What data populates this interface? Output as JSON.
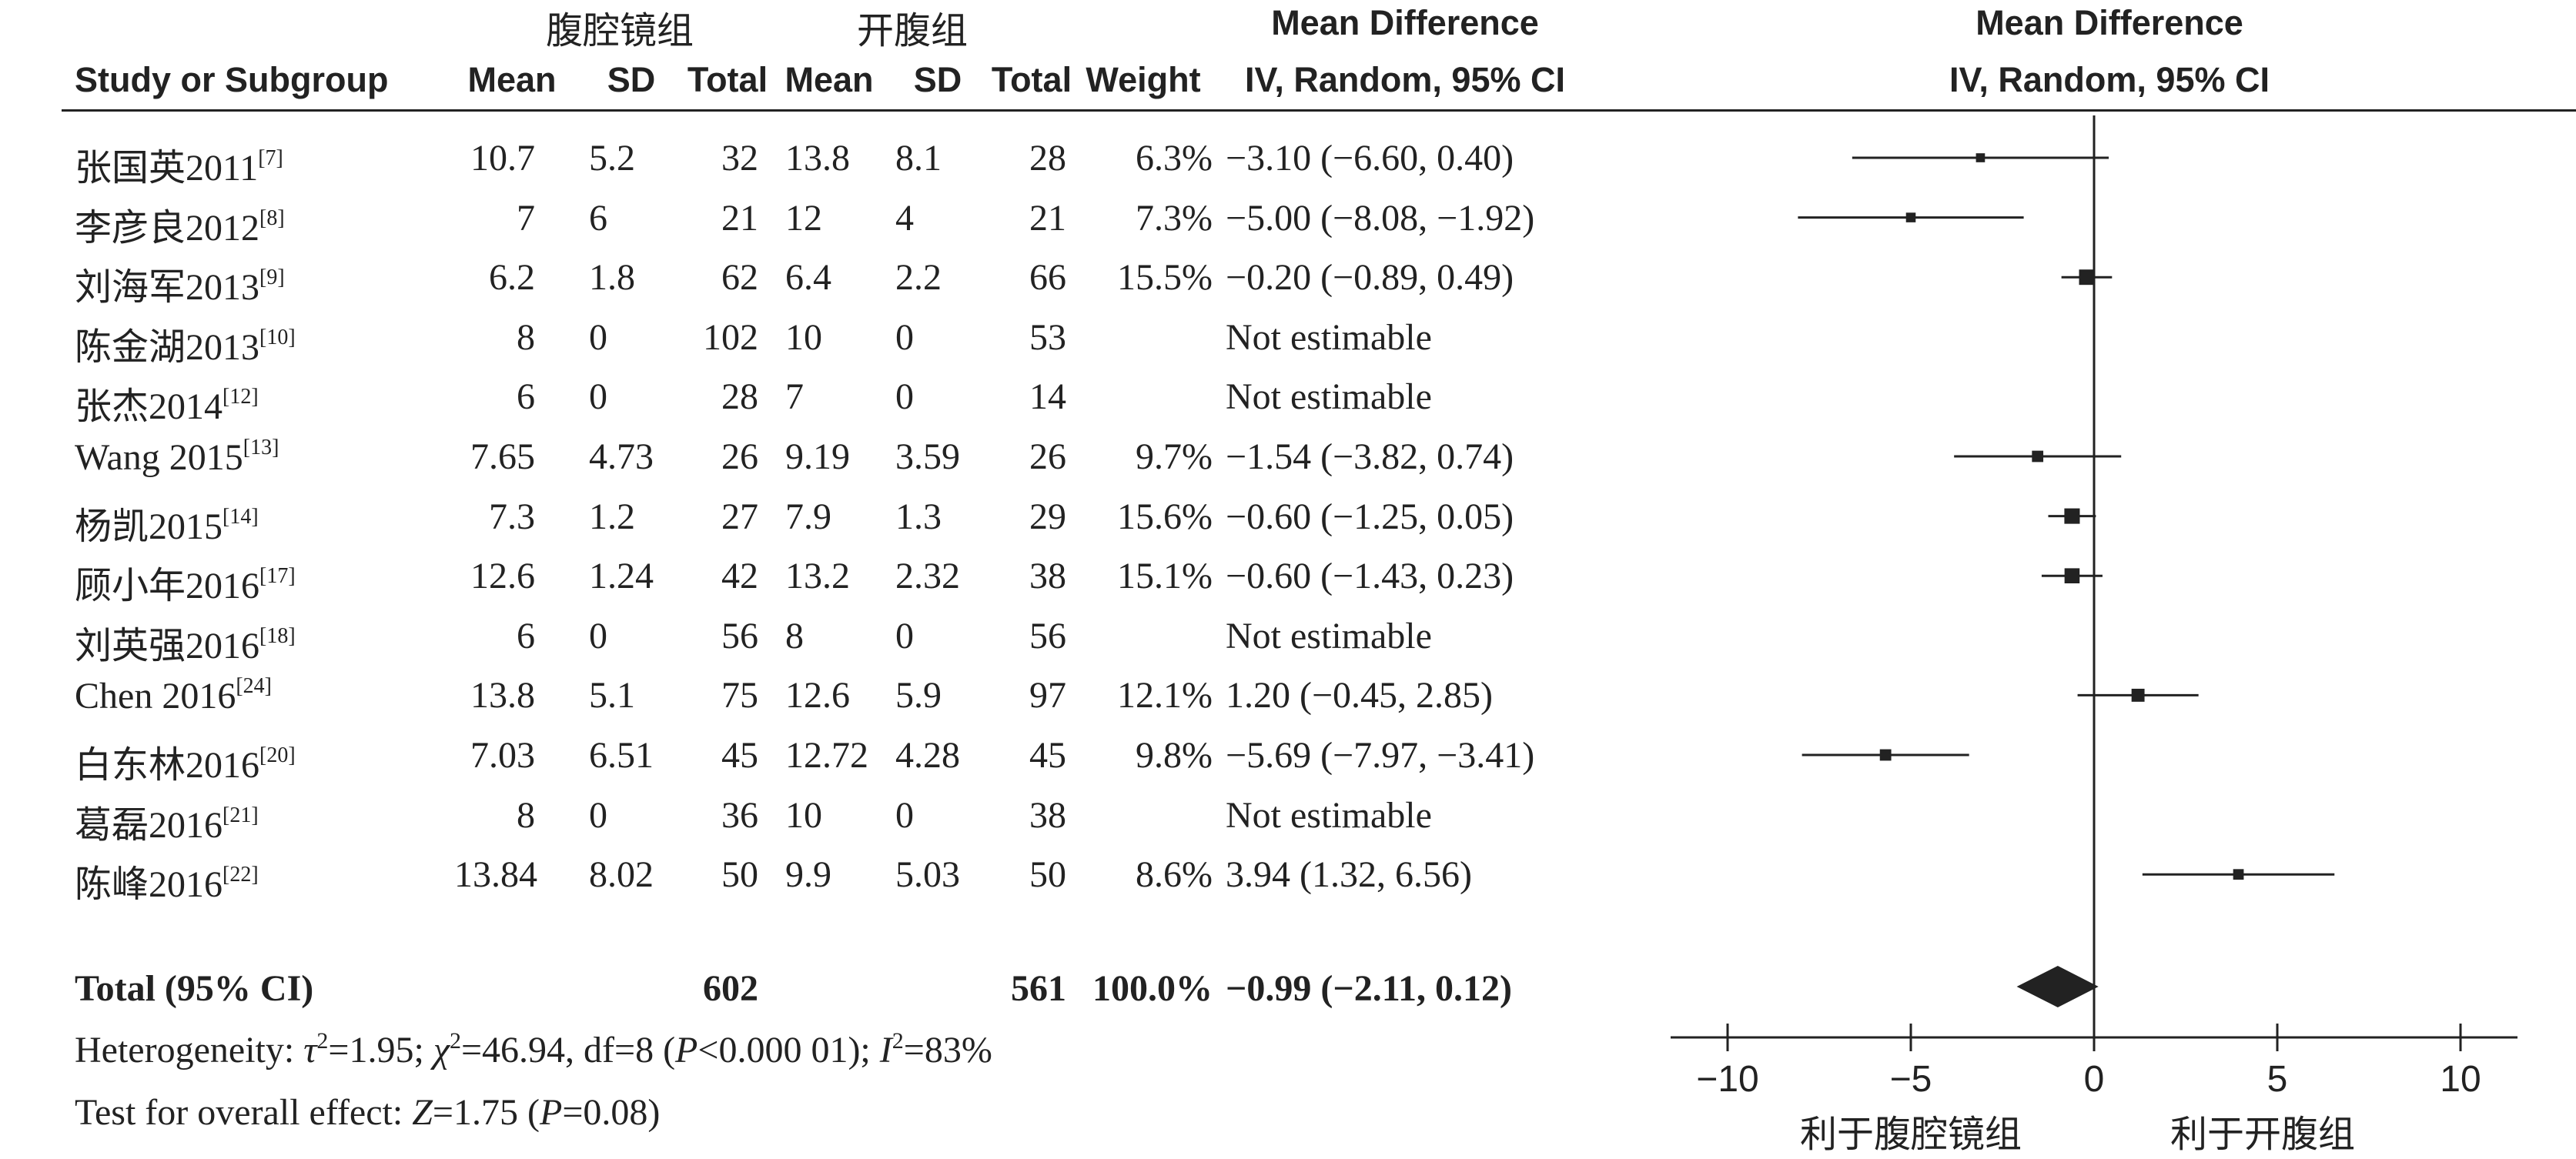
{
  "group_headers": {
    "experimental": "腹腔镜组",
    "control": "开腹组"
  },
  "column_headers": {
    "study": "Study or Subgroup",
    "mean1": "Mean",
    "sd1": "SD",
    "total1": "Total",
    "mean2": "Mean",
    "sd2": "SD",
    "total2": "Total",
    "weight": "Weight",
    "effect_title": "Mean Difference",
    "effect_sub": "IV, Random, 95% CI"
  },
  "plot_header": {
    "title": "Mean Difference",
    "sub": "IV, Random, 95% CI"
  },
  "rows": [
    {
      "study": "张国英2011",
      "ref": "[7]",
      "mean1": "10.7",
      "sd1": "5.2",
      "total1": "32",
      "mean2": "13.8",
      "sd2": "8.1",
      "total2": "28",
      "weight": "6.3%",
      "ci_text": "−3.10 (−6.60, 0.40)"
    },
    {
      "study": "李彦良2012",
      "ref": "[8]",
      "mean1": "7",
      "sd1": "6",
      "total1": "21",
      "mean2": "12",
      "sd2": "4",
      "total2": "21",
      "weight": "7.3%",
      "ci_text": "−5.00 (−8.08, −1.92)"
    },
    {
      "study": "刘海军2013",
      "ref": "[9]",
      "mean1": "6.2",
      "sd1": "1.8",
      "total1": "62",
      "mean2": "6.4",
      "sd2": "2.2",
      "total2": "66",
      "weight": "15.5%",
      "ci_text": "−0.20 (−0.89, 0.49)"
    },
    {
      "study": "陈金湖2013",
      "ref": "[10]",
      "mean1": "8",
      "sd1": "0",
      "total1": "102",
      "mean2": "10",
      "sd2": "0",
      "total2": "53",
      "weight": "",
      "ci_text": "Not estimable"
    },
    {
      "study": "张杰2014",
      "ref": "[12]",
      "mean1": "6",
      "sd1": "0",
      "total1": "28",
      "mean2": "7",
      "sd2": "0",
      "total2": "14",
      "weight": "",
      "ci_text": "Not estimable"
    },
    {
      "study": "Wang 2015",
      "ref": "[13]",
      "mean1": "7.65",
      "sd1": "4.73",
      "total1": "26",
      "mean2": "9.19",
      "sd2": "3.59",
      "total2": "26",
      "weight": "9.7%",
      "ci_text": "−1.54 (−3.82, 0.74)"
    },
    {
      "study": "杨凯2015",
      "ref": "[14]",
      "mean1": "7.3",
      "sd1": "1.2",
      "total1": "27",
      "mean2": "7.9",
      "sd2": "1.3",
      "total2": "29",
      "weight": "15.6%",
      "ci_text": "−0.60 (−1.25, 0.05)"
    },
    {
      "study": "顾小年2016",
      "ref": "[17]",
      "mean1": "12.6",
      "sd1": "1.24",
      "total1": "42",
      "mean2": "13.2",
      "sd2": "2.32",
      "total2": "38",
      "weight": "15.1%",
      "ci_text": "−0.60 (−1.43, 0.23)"
    },
    {
      "study": "刘英强2016",
      "ref": "[18]",
      "mean1": "6",
      "sd1": "0",
      "total1": "56",
      "mean2": "8",
      "sd2": "0",
      "total2": "56",
      "weight": "",
      "ci_text": "Not estimable"
    },
    {
      "study": "Chen 2016",
      "ref": "[24]",
      "mean1": "13.8",
      "sd1": "5.1",
      "total1": "75",
      "mean2": "12.6",
      "sd2": "5.9",
      "total2": "97",
      "weight": "12.1%",
      "ci_text": "1.20 (−0.45, 2.85)"
    },
    {
      "study": "白东林2016",
      "ref": "[20]",
      "mean1": "7.03",
      "sd1": "6.51",
      "total1": "45",
      "mean2": "12.72",
      "sd2": "4.28",
      "total2": "45",
      "weight": "9.8%",
      "ci_text": "−5.69 (−7.97, −3.41)"
    },
    {
      "study": "葛磊2016",
      "ref": "[21]",
      "mean1": "8",
      "sd1": "0",
      "total1": "36",
      "mean2": "10",
      "sd2": "0",
      "total2": "38",
      "weight": "",
      "ci_text": "Not estimable"
    },
    {
      "study": "陈峰2016",
      "ref": "[22]",
      "mean1": "13.84",
      "sd1": "8.02",
      "total1": "50",
      "mean2": "9.9",
      "sd2": "5.03",
      "total2": "50",
      "weight": "8.6%",
      "ci_text": "3.94 (1.32, 6.56)"
    }
  ],
  "total": {
    "label": "Total (95% CI)",
    "total1": "602",
    "total2": "561",
    "weight": "100.0%",
    "ci_text": "−0.99 (−2.11, 0.12)"
  },
  "heterogeneity": {
    "prefix": "Heterogeneity: ",
    "tau": "τ",
    "tau_eq": "=1.95; ",
    "chi": "χ",
    "chi_eq": "=46.94, df=8 (",
    "p": "P",
    "p_eq": "<0.000 01); ",
    "i": "I",
    "i_eq": "=83%",
    "sq": "2"
  },
  "overall": {
    "prefix": "Test for overall effect: ",
    "z": "Z",
    "z_eq": "=1.75 (",
    "p": "P",
    "p_eq": "=0.08)"
  },
  "chart_data": {
    "type": "forest",
    "xlim": [
      -10,
      10
    ],
    "ticks": [
      -10,
      -5,
      0,
      5,
      10
    ],
    "tick_labels": [
      "−10",
      "−5",
      "0",
      "5",
      "10"
    ],
    "favours_left": "利于腹腔镜组",
    "favours_right": "利于开腹组",
    "studies": [
      {
        "study": "张国英2011",
        "md": -3.1,
        "lower": -6.6,
        "upper": 0.4,
        "weight": 6.3
      },
      {
        "study": "李彦良2012",
        "md": -5.0,
        "lower": -8.08,
        "upper": -1.92,
        "weight": 7.3
      },
      {
        "study": "刘海军2013",
        "md": -0.2,
        "lower": -0.89,
        "upper": 0.49,
        "weight": 15.5
      },
      {
        "study": "陈金湖2013",
        "md": null,
        "lower": null,
        "upper": null,
        "weight": null
      },
      {
        "study": "张杰2014",
        "md": null,
        "lower": null,
        "upper": null,
        "weight": null
      },
      {
        "study": "Wang 2015",
        "md": -1.54,
        "lower": -3.82,
        "upper": 0.74,
        "weight": 9.7
      },
      {
        "study": "杨凯2015",
        "md": -0.6,
        "lower": -1.25,
        "upper": 0.05,
        "weight": 15.6
      },
      {
        "study": "顾小年2016",
        "md": -0.6,
        "lower": -1.43,
        "upper": 0.23,
        "weight": 15.1
      },
      {
        "study": "刘英强2016",
        "md": null,
        "lower": null,
        "upper": null,
        "weight": null
      },
      {
        "study": "Chen 2016",
        "md": 1.2,
        "lower": -0.45,
        "upper": 2.85,
        "weight": 12.1
      },
      {
        "study": "白东林2016",
        "md": -5.69,
        "lower": -7.97,
        "upper": -3.41,
        "weight": 9.8
      },
      {
        "study": "葛磊2016",
        "md": null,
        "lower": null,
        "upper": null,
        "weight": null
      },
      {
        "study": "陈峰2016",
        "md": 3.94,
        "lower": 1.32,
        "upper": 6.56,
        "weight": 8.6
      }
    ],
    "pooled": {
      "md": -0.99,
      "lower": -2.11,
      "upper": 0.12
    }
  }
}
